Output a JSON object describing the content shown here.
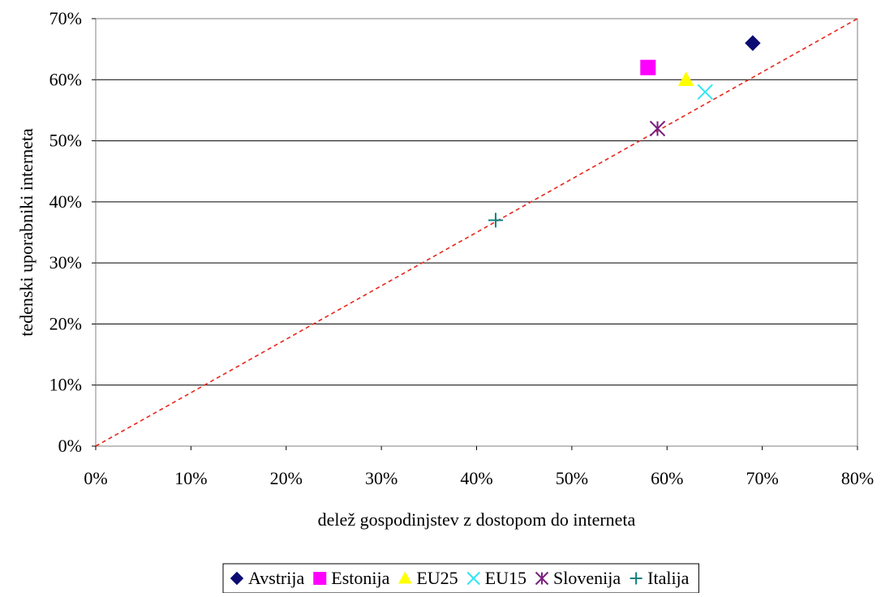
{
  "chart_data": {
    "type": "scatter",
    "title": "",
    "xlabel": "delež gospodinjstev z dostopom do interneta",
    "ylabel": "tedenski uporabniki interneta",
    "xlim": [
      0,
      0.8
    ],
    "ylim": [
      0,
      0.7
    ],
    "x_ticks": [
      "0%",
      "10%",
      "20%",
      "30%",
      "40%",
      "50%",
      "60%",
      "70%",
      "80%"
    ],
    "y_ticks": [
      "0%",
      "10%",
      "20%",
      "30%",
      "40%",
      "50%",
      "60%",
      "70%"
    ],
    "grid": "horizontal",
    "legend_position": "bottom",
    "reference_line": {
      "style": "dashed",
      "color": "#e8261b",
      "from": [
        0,
        0
      ],
      "to": [
        0.8,
        0.7
      ]
    },
    "series": [
      {
        "name": "Avstrija",
        "marker": "diamond",
        "color": "#0b0b72",
        "x": 0.69,
        "y": 0.66
      },
      {
        "name": "Estonija",
        "marker": "square",
        "color": "#ff00ff",
        "x": 0.58,
        "y": 0.62
      },
      {
        "name": "EU25",
        "marker": "triangle",
        "color": "#ffff00",
        "x": 0.62,
        "y": 0.6
      },
      {
        "name": "EU15",
        "marker": "x",
        "color": "#33e6f2",
        "x": 0.64,
        "y": 0.58
      },
      {
        "name": "Slovenija",
        "marker": "star",
        "color": "#7a1f80",
        "x": 0.59,
        "y": 0.52
      },
      {
        "name": "Italija",
        "marker": "plus",
        "color": "#0f7f7f",
        "x": 0.42,
        "y": 0.37
      }
    ]
  }
}
